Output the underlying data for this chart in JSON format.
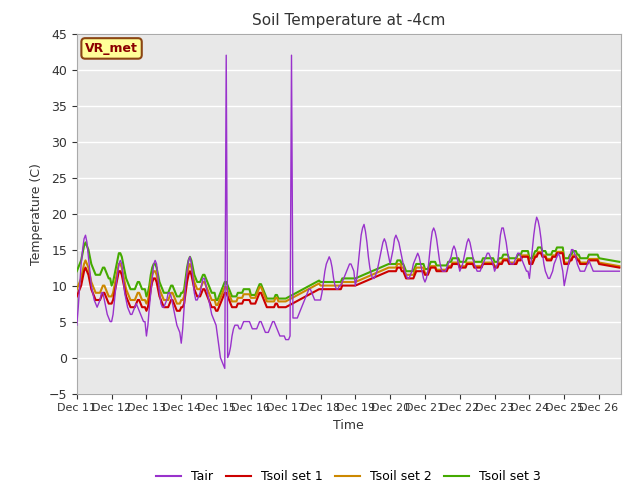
{
  "title": "Soil Temperature at -4cm",
  "xlabel": "Time",
  "ylabel": "Temperature (C)",
  "ylim": [
    -5,
    45
  ],
  "yticks": [
    -5,
    0,
    5,
    10,
    15,
    20,
    25,
    30,
    35,
    40,
    45
  ],
  "xlim": [
    0,
    375
  ],
  "fig_bg": "#ffffff",
  "plot_bg": "#e8e8e8",
  "grid_color": "#ffffff",
  "annotation_label": "VR_met",
  "annotation_bg": "#ffff99",
  "annotation_border": "#8b4513",
  "annotation_text_color": "#8b0000",
  "legend_entries": [
    "Tair",
    "Tsoil set 1",
    "Tsoil set 2",
    "Tsoil set 3"
  ],
  "legend_colors": [
    "#9932CC",
    "#cc0000",
    "#cc8800",
    "#44aa00"
  ],
  "line_colors": {
    "Tair": "#9932CC",
    "Tsoil1": "#cc0000",
    "Tsoil2": "#cc8800",
    "Tsoil3": "#44aa00"
  },
  "xtick_labels": [
    "Dec 11",
    "Dec 12",
    "Dec 13",
    "Dec 14",
    "Dec 15",
    "Dec 16",
    "Dec 17",
    "Dec 18",
    "Dec 19",
    "Dec 20",
    "Dec 21",
    "Dec 22",
    "Dec 23",
    "Dec 24",
    "Dec 25",
    "Dec 26"
  ],
  "xtick_positions": [
    0,
    24,
    48,
    72,
    96,
    120,
    144,
    168,
    192,
    216,
    240,
    264,
    288,
    312,
    336,
    360
  ]
}
